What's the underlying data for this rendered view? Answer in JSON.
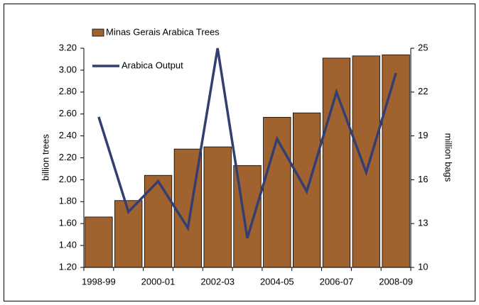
{
  "chart_data": {
    "type": "bar_line",
    "categories": [
      "1998-99",
      null,
      "2000-01",
      null,
      "2002-03",
      null,
      "2004-05",
      null,
      "2006-07",
      null,
      "2008-09"
    ],
    "series": [
      {
        "name": "Minas Gerais Arabica Trees",
        "type": "bar",
        "color": "#a0622f",
        "values": [
          1.66,
          1.81,
          2.04,
          2.28,
          2.3,
          2.13,
          2.57,
          2.61,
          3.11,
          3.13,
          3.14
        ]
      },
      {
        "name": "Arabica Output",
        "type": "line",
        "axis": "y2",
        "color": "#333f70",
        "values": [
          20.3,
          13.8,
          15.9,
          12.7,
          25,
          12.0,
          18.8,
          15.2,
          22.0,
          16.5,
          23.3
        ]
      }
    ],
    "ylabel": "billion trees",
    "y2label": "million bags",
    "ylim": [
      1.2,
      3.2
    ],
    "yticks": [
      {
        "value": 1.2,
        "label": "1.20"
      },
      {
        "value": 1.4,
        "label": "1.40"
      },
      {
        "value": 1.6,
        "label": "1.60"
      },
      {
        "value": 1.8,
        "label": "1.80"
      },
      {
        "value": 2.0,
        "label": "2.00"
      },
      {
        "value": 2.2,
        "label": "2.20"
      },
      {
        "value": 2.4,
        "label": "2.40"
      },
      {
        "value": 2.6,
        "label": "2.60"
      },
      {
        "value": 2.8,
        "label": "2.80"
      },
      {
        "value": 3.0,
        "label": "3.00"
      },
      {
        "value": 3.2,
        "label": "3.20"
      }
    ],
    "y2lim": [
      10,
      25
    ],
    "y2ticks": [
      10,
      13,
      16,
      19,
      22,
      25
    ],
    "legend": "upper left",
    "grid": false
  }
}
